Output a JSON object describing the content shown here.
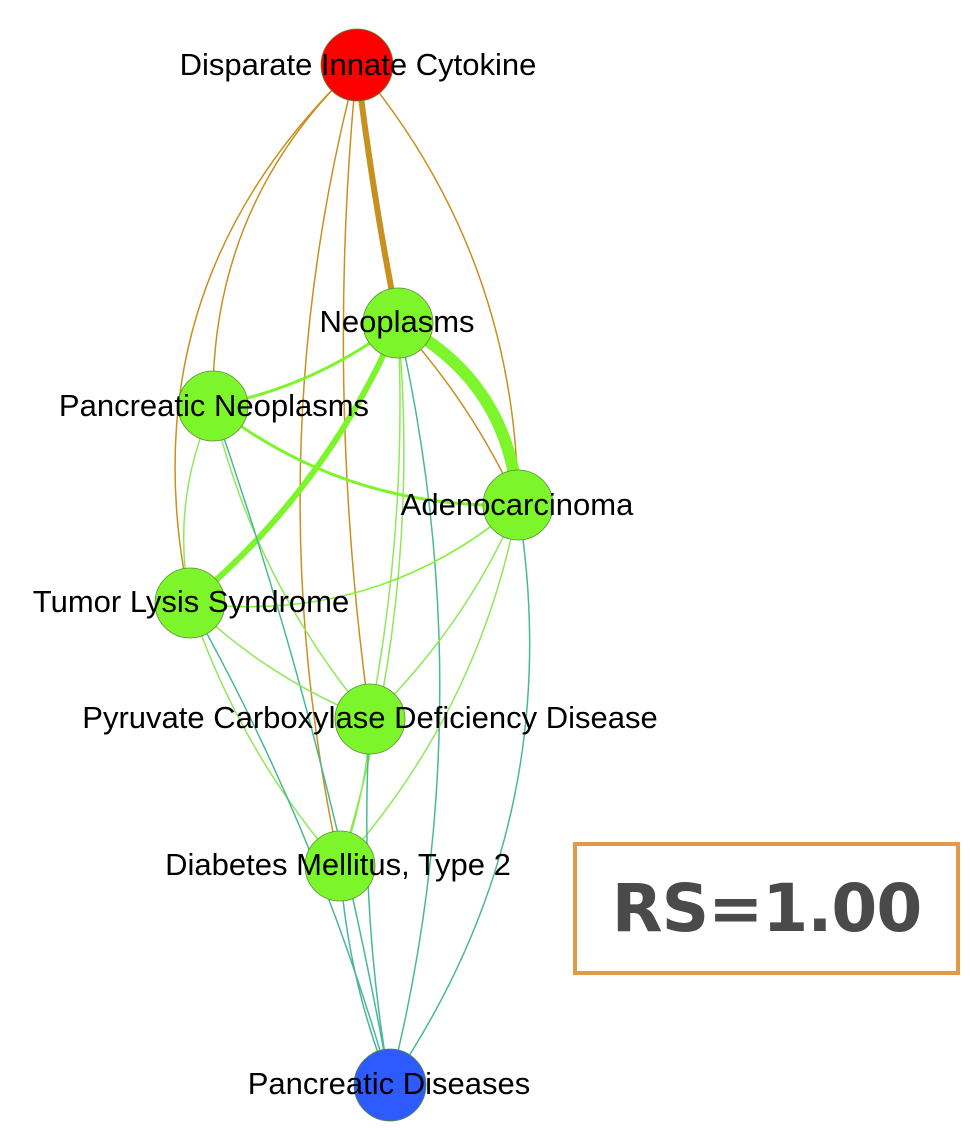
{
  "graph": {
    "nodes": [
      {
        "id": "cytokine",
        "label": "Disparate Innate Cytokine",
        "color": "#ff0000"
      },
      {
        "id": "neoplasms",
        "label": "Neoplasms",
        "color": "#7cf52a"
      },
      {
        "id": "pancneo",
        "label": "Pancreatic Neoplasms",
        "color": "#7cf52a"
      },
      {
        "id": "adeno",
        "label": "Adenocarcinoma",
        "color": "#7cf52a"
      },
      {
        "id": "tumor",
        "label": "Tumor Lysis Syndrome",
        "color": "#7cf52a"
      },
      {
        "id": "pyruvate",
        "label": "Pyruvate Carboxylase Deficiency Disease",
        "color": "#7cf52a"
      },
      {
        "id": "diabetes",
        "label": "Diabetes Mellitus, Type 2",
        "color": "#7cf52a"
      },
      {
        "id": "pancdis",
        "label": "Pancreatic Diseases",
        "color": "#2d5bff"
      }
    ],
    "edges": [
      {
        "from": "cytokine",
        "to": "neoplasms",
        "weight": 6,
        "color": "#c8901e"
      },
      {
        "from": "cytokine",
        "to": "pancneo",
        "weight": 1.5,
        "color": "#c8901e"
      },
      {
        "from": "cytokine",
        "to": "tumor",
        "weight": 1.5,
        "color": "#c8901e"
      },
      {
        "from": "cytokine",
        "to": "adeno",
        "weight": 1.5,
        "color": "#c8901e"
      },
      {
        "from": "cytokine",
        "to": "diabetes",
        "weight": 1.5,
        "color": "#c8901e"
      },
      {
        "from": "cytokine",
        "to": "pyruvate",
        "weight": 1.5,
        "color": "#c8901e"
      },
      {
        "from": "neoplasms",
        "to": "adeno",
        "weight": 12,
        "color": "#7cf52a"
      },
      {
        "from": "neoplasms",
        "to": "tumor",
        "weight": 6,
        "color": "#7cf52a"
      },
      {
        "from": "neoplasms",
        "to": "pancneo",
        "weight": 3,
        "color": "#7cf52a"
      },
      {
        "from": "neoplasms",
        "to": "pyruvate",
        "weight": 1.5,
        "color": "#8fe85a"
      },
      {
        "from": "neoplasms",
        "to": "diabetes",
        "weight": 1.5,
        "color": "#8fe85a"
      },
      {
        "from": "neoplasms",
        "to": "adeno",
        "weight": 1.5,
        "color": "#c8901e"
      },
      {
        "from": "neoplasms",
        "to": "pancdis",
        "weight": 1.5,
        "color": "#4ab898"
      },
      {
        "from": "pancneo",
        "to": "adeno",
        "weight": 3,
        "color": "#7cf52a"
      },
      {
        "from": "pancneo",
        "to": "tumor",
        "weight": 1.5,
        "color": "#8fe85a"
      },
      {
        "from": "pancneo",
        "to": "pyruvate",
        "weight": 1.5,
        "color": "#8fe85a"
      },
      {
        "from": "pancneo",
        "to": "pancdis",
        "weight": 1.5,
        "color": "#4ab898"
      },
      {
        "from": "tumor",
        "to": "adeno",
        "weight": 1.5,
        "color": "#7cf52a"
      },
      {
        "from": "tumor",
        "to": "pyruvate",
        "weight": 1.5,
        "color": "#8fe85a"
      },
      {
        "from": "tumor",
        "to": "diabetes",
        "weight": 1.5,
        "color": "#8fe85a"
      },
      {
        "from": "tumor",
        "to": "pancdis",
        "weight": 1.5,
        "color": "#4ab898"
      },
      {
        "from": "adeno",
        "to": "pyruvate",
        "weight": 1.5,
        "color": "#8fe85a"
      },
      {
        "from": "adeno",
        "to": "diabetes",
        "weight": 1.5,
        "color": "#8fe85a"
      },
      {
        "from": "adeno",
        "to": "pancdis",
        "weight": 1.5,
        "color": "#4ab898"
      },
      {
        "from": "pyruvate",
        "to": "diabetes",
        "weight": 1.5,
        "color": "#8fe85a"
      },
      {
        "from": "pyruvate",
        "to": "pancdis",
        "weight": 1.5,
        "color": "#4ab898"
      },
      {
        "from": "diabetes",
        "to": "pancdis",
        "weight": 1.5,
        "color": "#4ab898"
      }
    ]
  },
  "score": {
    "text": "RS=1.00",
    "border_color": "#e09a4a",
    "text_color": "#4a4a4a"
  }
}
